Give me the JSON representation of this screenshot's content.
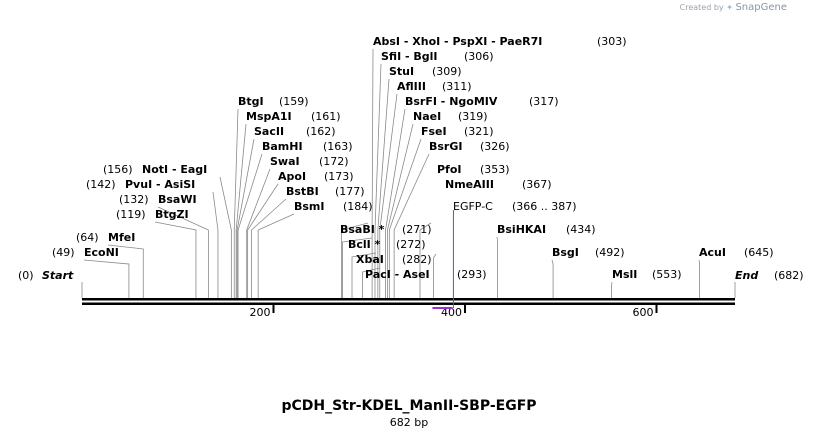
{
  "credit": {
    "prefix": "Created by",
    "brand": "SnapGene",
    "icon": "snapgene-logo-icon"
  },
  "map": {
    "length": 682,
    "start_label": "Start",
    "start_pos": "(0)",
    "end_label": "End",
    "end_pos": "(682)",
    "ticks": [
      "200",
      "400",
      "600"
    ],
    "tick_values": [
      200,
      400,
      600
    ]
  },
  "feature": {
    "name": "EGFP-C",
    "range": "(366 .. 387)",
    "start": 366,
    "end": 387,
    "color": "#9b2fd0"
  },
  "sites": [
    {
      "label": "EcoNI",
      "num": "(49)",
      "pos": 49,
      "side": "left"
    },
    {
      "label": "MfeI",
      "num": "(64)",
      "pos": 64,
      "side": "left"
    },
    {
      "label": "BtgZI",
      "num": "(119)",
      "pos": 119,
      "side": "left"
    },
    {
      "label": "BsaWI",
      "num": "(132)",
      "pos": 132,
      "side": "left"
    },
    {
      "label": "PvuI  -  AsiSI",
      "num": "(142)",
      "pos": 142,
      "side": "left"
    },
    {
      "label": "NotI  -  EagI",
      "num": "(156)",
      "pos": 156,
      "side": "left"
    },
    {
      "label": "BtgI",
      "num": "(159)",
      "pos": 159,
      "side": "right"
    },
    {
      "label": "MspA1I",
      "num": "(161)",
      "pos": 161,
      "side": "right"
    },
    {
      "label": "SacII",
      "num": "(162)",
      "pos": 162,
      "side": "right"
    },
    {
      "label": "BamHI",
      "num": "(163)",
      "pos": 163,
      "side": "right"
    },
    {
      "label": "SwaI",
      "num": "(172)",
      "pos": 172,
      "side": "right"
    },
    {
      "label": "ApoI",
      "num": "(173)",
      "pos": 173,
      "side": "right"
    },
    {
      "label": "BstBI",
      "num": "(177)",
      "pos": 177,
      "side": "right"
    },
    {
      "label": "BsmI",
      "num": "(184)",
      "pos": 184,
      "side": "right"
    },
    {
      "label": "BsaBI *",
      "num": "(271)",
      "pos": 271,
      "side": "right"
    },
    {
      "label": "BclI *",
      "num": "(272)",
      "pos": 272,
      "side": "right"
    },
    {
      "label": "XbaI",
      "num": "(282)",
      "pos": 282,
      "side": "right"
    },
    {
      "label": "PacI  -  AseI",
      "num": "(293)",
      "pos": 293,
      "side": "right"
    },
    {
      "label": "AbsI  -  XhoI  -  PspXI  -  PaeR7I",
      "num": "(303)",
      "pos": 303,
      "side": "right"
    },
    {
      "label": "SfiI  -  BglI",
      "num": "(306)",
      "pos": 306,
      "side": "right"
    },
    {
      "label": "StuI",
      "num": "(309)",
      "pos": 309,
      "side": "right"
    },
    {
      "label": "AflIII",
      "num": "(311)",
      "pos": 311,
      "side": "right"
    },
    {
      "label": "BsrFI  -  NgoMIV",
      "num": "(317)",
      "pos": 317,
      "side": "right"
    },
    {
      "label": "NaeI",
      "num": "(319)",
      "pos": 319,
      "side": "right"
    },
    {
      "label": "FseI",
      "num": "(321)",
      "pos": 321,
      "side": "right"
    },
    {
      "label": "BsrGI",
      "num": "(326)",
      "pos": 326,
      "side": "right"
    },
    {
      "label": "PfoI",
      "num": "(353)",
      "pos": 353,
      "side": "right"
    },
    {
      "label": "NmeAIII",
      "num": "(367)",
      "pos": 367,
      "side": "right"
    },
    {
      "label": "BsiHKAI",
      "num": "(434)",
      "pos": 434,
      "side": "right"
    },
    {
      "label": "BsgI",
      "num": "(492)",
      "pos": 492,
      "side": "right"
    },
    {
      "label": "MslI",
      "num": "(553)",
      "pos": 553,
      "side": "right"
    },
    {
      "label": "AcuI",
      "num": "(645)",
      "pos": 645,
      "side": "right"
    }
  ],
  "plasmid": {
    "name": "pCDH_Str-KDEL_ManII-SBP-EGFP",
    "size": "682 bp"
  }
}
